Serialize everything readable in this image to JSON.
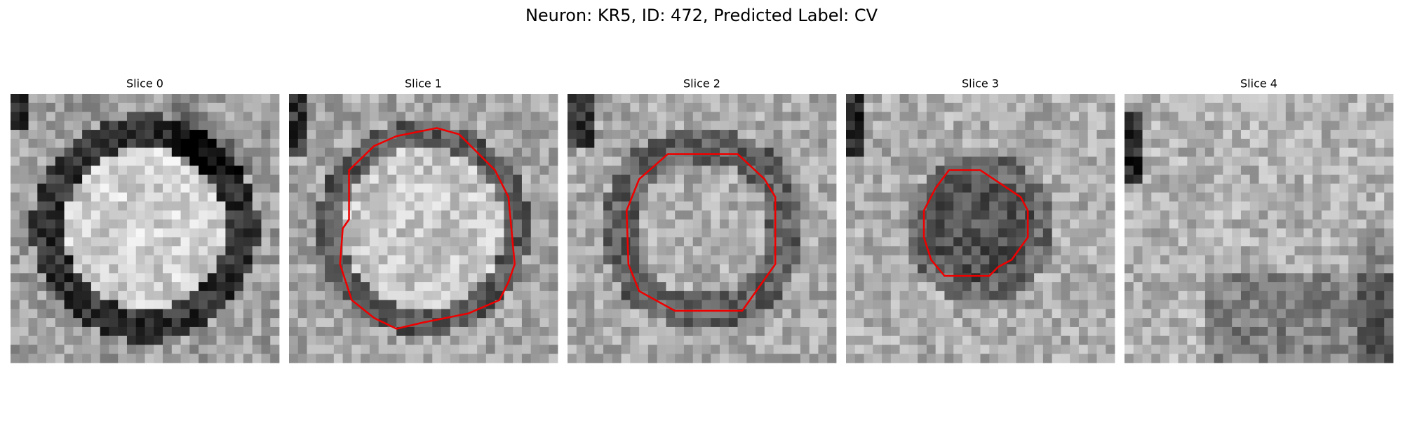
{
  "title": "Neuron: KR5, ID: 472, Predicted Label: CV",
  "panels": [
    {
      "title": "Slice 0"
    },
    {
      "title": "Slice 1"
    },
    {
      "title": "Slice 2"
    },
    {
      "title": "Slice 3"
    },
    {
      "title": "Slice 4"
    }
  ]
}
